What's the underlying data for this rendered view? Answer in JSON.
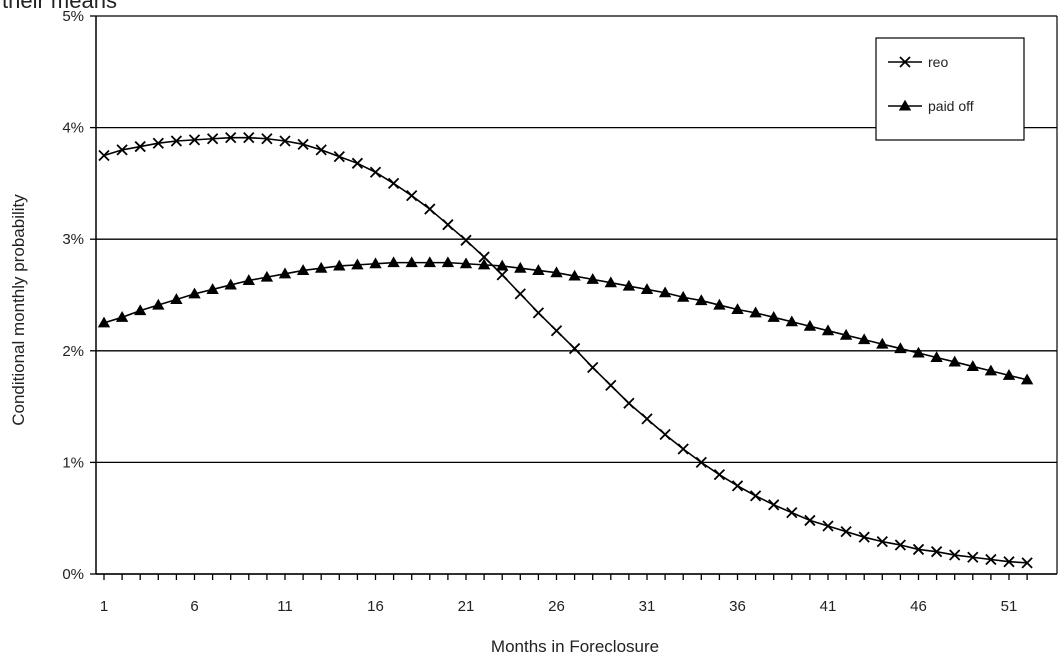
{
  "caption_fragment": "their means",
  "chart_data": {
    "type": "line",
    "title": "",
    "xlabel": "Months in Foreclosure",
    "ylabel": "Conditional monthly probability",
    "xlim": [
      1,
      52
    ],
    "ylim": [
      0,
      5
    ],
    "x_ticks": [
      1,
      6,
      11,
      16,
      21,
      26,
      31,
      36,
      41,
      46,
      51
    ],
    "y_ticks": [
      "0%",
      "1%",
      "2%",
      "3%",
      "4%",
      "5%"
    ],
    "grid": "horizontal",
    "legend_position": "top-right",
    "x": [
      1,
      2,
      3,
      4,
      5,
      6,
      7,
      8,
      9,
      10,
      11,
      12,
      13,
      14,
      15,
      16,
      17,
      18,
      19,
      20,
      21,
      22,
      23,
      24,
      25,
      26,
      27,
      28,
      29,
      30,
      31,
      32,
      33,
      34,
      35,
      36,
      37,
      38,
      39,
      40,
      41,
      42,
      43,
      44,
      45,
      46,
      47,
      48,
      49,
      50,
      51,
      52
    ],
    "series": [
      {
        "name": "reo",
        "marker": "x",
        "values": [
          3.75,
          3.8,
          3.83,
          3.86,
          3.88,
          3.89,
          3.9,
          3.91,
          3.91,
          3.9,
          3.88,
          3.85,
          3.8,
          3.74,
          3.68,
          3.6,
          3.5,
          3.39,
          3.27,
          3.13,
          2.99,
          2.84,
          2.68,
          2.51,
          2.34,
          2.18,
          2.02,
          1.85,
          1.69,
          1.53,
          1.39,
          1.25,
          1.12,
          1.0,
          0.89,
          0.79,
          0.7,
          0.62,
          0.55,
          0.48,
          0.43,
          0.38,
          0.33,
          0.29,
          0.26,
          0.22,
          0.2,
          0.17,
          0.15,
          0.13,
          0.11,
          0.1
        ]
      },
      {
        "name": "paid off",
        "marker": "triangle",
        "values": [
          2.25,
          2.3,
          2.36,
          2.41,
          2.46,
          2.51,
          2.55,
          2.59,
          2.63,
          2.66,
          2.69,
          2.72,
          2.74,
          2.76,
          2.77,
          2.78,
          2.79,
          2.79,
          2.79,
          2.79,
          2.78,
          2.77,
          2.76,
          2.74,
          2.72,
          2.7,
          2.67,
          2.64,
          2.61,
          2.58,
          2.55,
          2.52,
          2.48,
          2.45,
          2.41,
          2.37,
          2.34,
          2.3,
          2.26,
          2.22,
          2.18,
          2.14,
          2.1,
          2.06,
          2.02,
          1.98,
          1.94,
          1.9,
          1.86,
          1.82,
          1.78,
          1.74
        ]
      }
    ]
  }
}
